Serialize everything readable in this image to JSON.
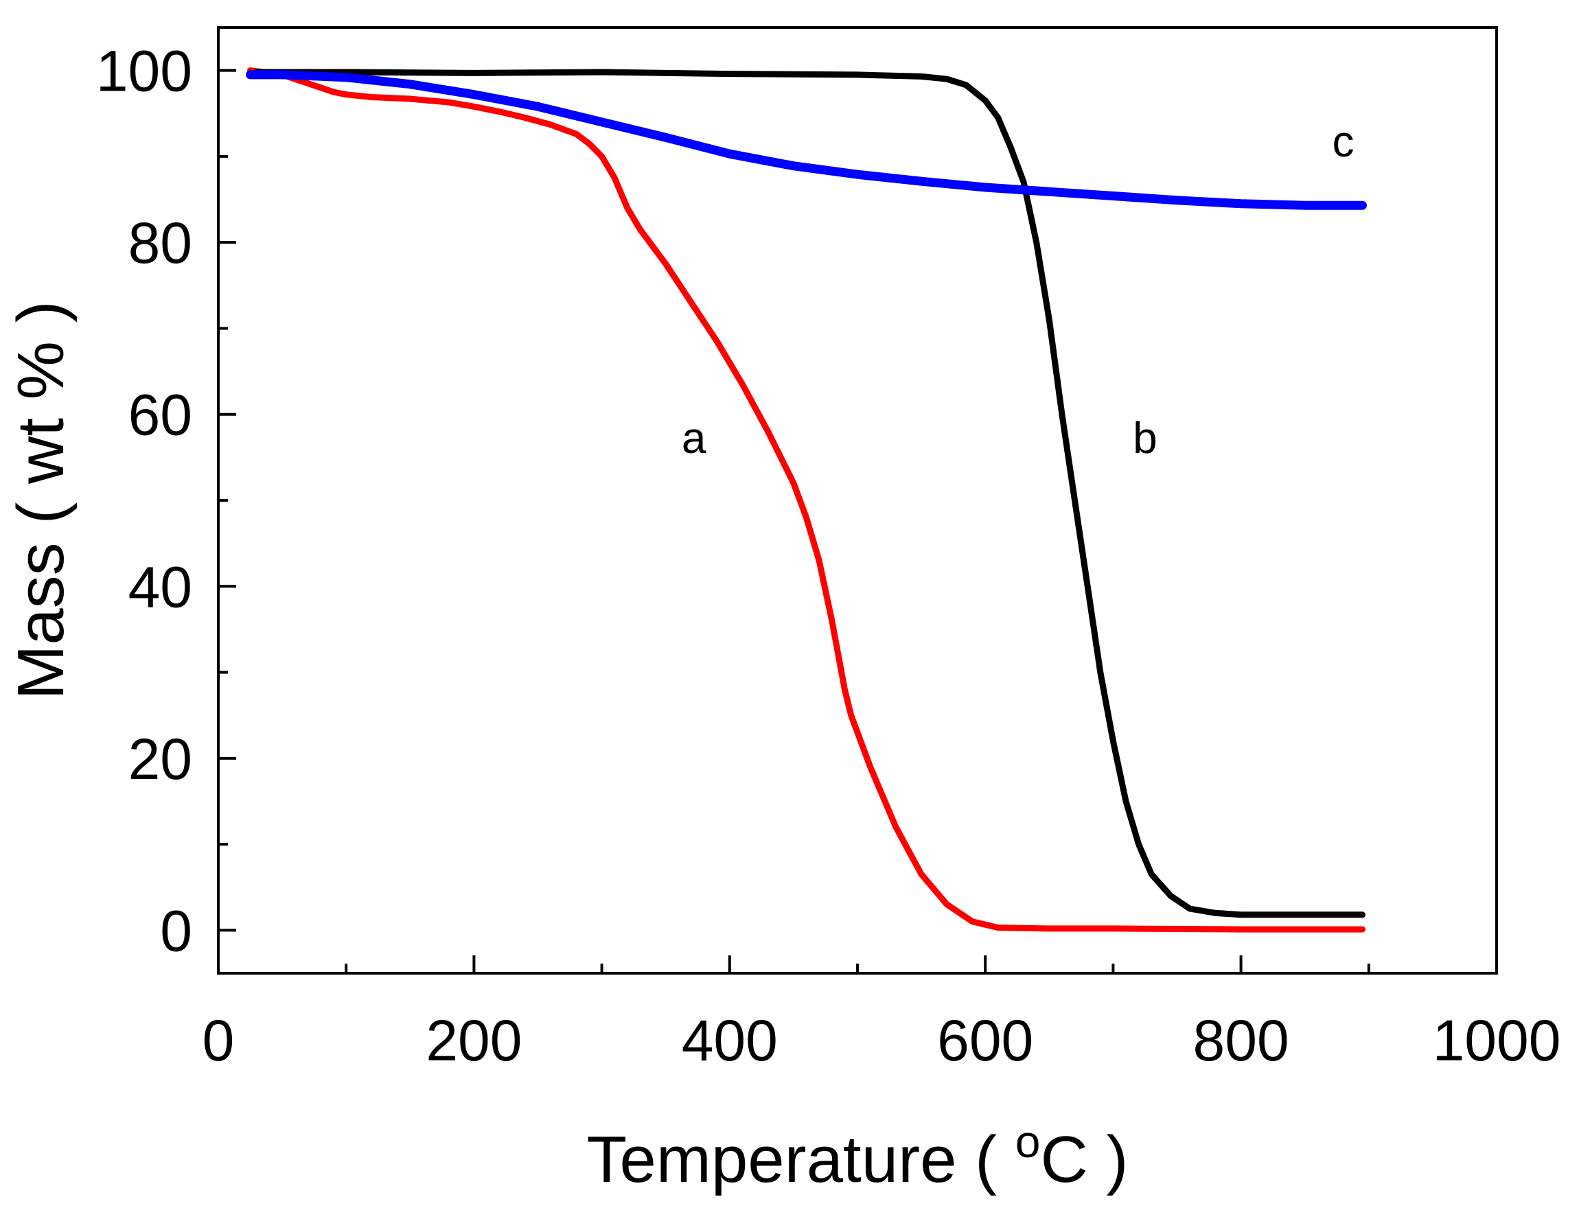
{
  "chart_data": {
    "type": "line",
    "title": "",
    "xlabel": "Temperature ( ",
    "xlabel_superscript": "o",
    "xlabel_unit": "C )",
    "ylabel": "Mass ( wt % )",
    "xlim": [
      0,
      1000
    ],
    "ylim": [
      -5,
      105
    ],
    "x_ticks": [
      0,
      200,
      400,
      600,
      800,
      1000
    ],
    "x_tick_labels": [
      "0",
      "200",
      "400",
      "600",
      "800",
      "1000"
    ],
    "x_minor_ticks": [
      100,
      300,
      500,
      700,
      900
    ],
    "y_ticks": [
      0,
      20,
      40,
      60,
      80,
      100
    ],
    "y_tick_labels": [
      "0",
      "20",
      "40",
      "60",
      "80",
      "100"
    ],
    "y_minor_ticks": [
      10,
      30,
      50,
      70,
      90
    ],
    "grid": false,
    "series": [
      {
        "name": "a",
        "color": "#ff0000",
        "points": [
          [
            25,
            100
          ],
          [
            50,
            99.5
          ],
          [
            60,
            99
          ],
          [
            70,
            98.5
          ],
          [
            80,
            98
          ],
          [
            90,
            97.5
          ],
          [
            100,
            97.2
          ],
          [
            120,
            96.9
          ],
          [
            150,
            96.7
          ],
          [
            180,
            96.3
          ],
          [
            200,
            95.8
          ],
          [
            220,
            95.2
          ],
          [
            240,
            94.5
          ],
          [
            260,
            93.7
          ],
          [
            280,
            92.6
          ],
          [
            290,
            91.5
          ],
          [
            300,
            90
          ],
          [
            310,
            87.5
          ],
          [
            320,
            84
          ],
          [
            330,
            81.5
          ],
          [
            350,
            77.5
          ],
          [
            370,
            73
          ],
          [
            390,
            68.5
          ],
          [
            410,
            63.5
          ],
          [
            430,
            58
          ],
          [
            450,
            52
          ],
          [
            460,
            48
          ],
          [
            470,
            43
          ],
          [
            480,
            36
          ],
          [
            490,
            28
          ],
          [
            495,
            25
          ],
          [
            510,
            19
          ],
          [
            530,
            12
          ],
          [
            550,
            6.5
          ],
          [
            570,
            3
          ],
          [
            590,
            1
          ],
          [
            610,
            0.3
          ],
          [
            650,
            0.2
          ],
          [
            700,
            0.2
          ],
          [
            800,
            0.1
          ],
          [
            895,
            0.1
          ]
        ]
      },
      {
        "name": "b",
        "color": "#000000",
        "points": [
          [
            30,
            99.8
          ],
          [
            100,
            99.8
          ],
          [
            200,
            99.7
          ],
          [
            300,
            99.8
          ],
          [
            400,
            99.6
          ],
          [
            500,
            99.5
          ],
          [
            550,
            99.3
          ],
          [
            570,
            99
          ],
          [
            585,
            98.3
          ],
          [
            600,
            96.5
          ],
          [
            610,
            94.5
          ],
          [
            620,
            91
          ],
          [
            630,
            87
          ],
          [
            640,
            80
          ],
          [
            650,
            71
          ],
          [
            660,
            60
          ],
          [
            670,
            50
          ],
          [
            680,
            40
          ],
          [
            690,
            30
          ],
          [
            700,
            22
          ],
          [
            710,
            15
          ],
          [
            720,
            10
          ],
          [
            730,
            6.5
          ],
          [
            745,
            4
          ],
          [
            760,
            2.5
          ],
          [
            780,
            2
          ],
          [
            800,
            1.8
          ],
          [
            850,
            1.8
          ],
          [
            895,
            1.8
          ]
        ]
      },
      {
        "name": "c",
        "color": "#0000ff",
        "points": [
          [
            25,
            99.5
          ],
          [
            50,
            99.5
          ],
          [
            100,
            99.2
          ],
          [
            150,
            98.4
          ],
          [
            200,
            97.2
          ],
          [
            250,
            95.8
          ],
          [
            300,
            94
          ],
          [
            350,
            92.2
          ],
          [
            400,
            90.3
          ],
          [
            450,
            88.9
          ],
          [
            500,
            87.9
          ],
          [
            550,
            87.1
          ],
          [
            600,
            86.4
          ],
          [
            650,
            85.9
          ],
          [
            700,
            85.4
          ],
          [
            750,
            84.9
          ],
          [
            800,
            84.5
          ],
          [
            850,
            84.3
          ],
          [
            895,
            84.3
          ]
        ]
      }
    ],
    "annotations": [
      {
        "text": "a",
        "x": 372,
        "y": 55.5
      },
      {
        "text": "b",
        "x": 725,
        "y": 55.5
      },
      {
        "text": "c",
        "x": 880,
        "y": 90
      }
    ]
  }
}
